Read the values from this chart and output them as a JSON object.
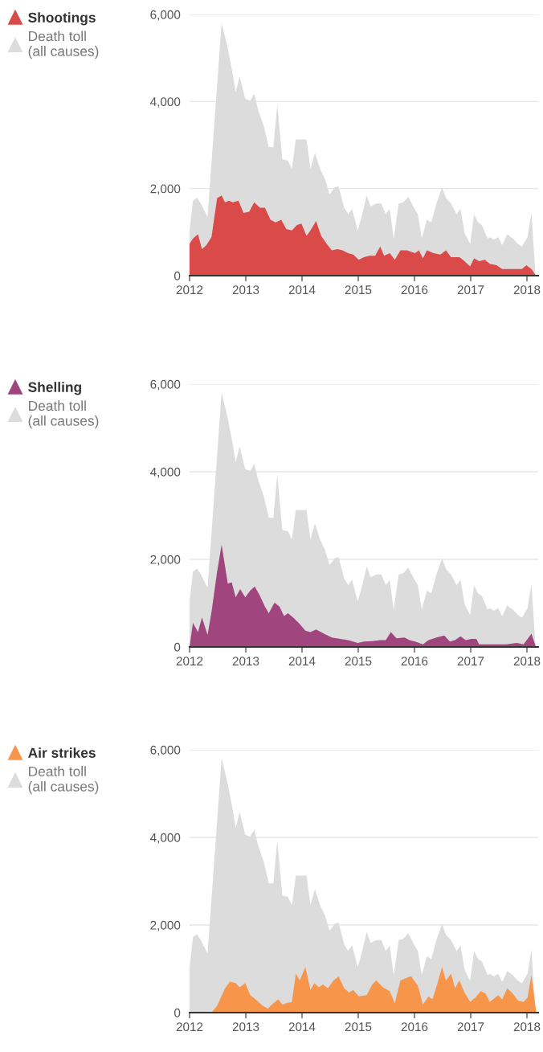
{
  "chart_data": [
    {
      "type": "area",
      "xlim": [
        2012,
        2018.2
      ],
      "xticks": [
        2012,
        2013,
        2014,
        2015,
        2016,
        2017,
        2018
      ],
      "ylim": [
        0,
        6000
      ],
      "yticks": [
        0,
        {
          "value": 2000,
          "label": "2,000"
        },
        {
          "value": 4000,
          "label": "4,000"
        },
        {
          "value": 6000,
          "label": "6,000"
        }
      ],
      "grid": "y",
      "legend": "top left",
      "series": [
        {
          "name": "Shootings",
          "color": "#d94a48",
          "x": [
            2012.0,
            2012.06,
            2012.15,
            2012.22,
            2012.3,
            2012.39,
            2012.49,
            2012.57,
            2012.63,
            2012.7,
            2012.77,
            2012.87,
            2012.96,
            2013.06,
            2013.15,
            2013.25,
            2013.34,
            2013.44,
            2013.53,
            2013.63,
            2013.72,
            2013.82,
            2013.91,
            2013.99,
            2014.08,
            2014.15,
            2014.25,
            2014.34,
            2014.44,
            2014.53,
            2014.63,
            2014.72,
            2014.82,
            2014.91,
            2015.01,
            2015.1,
            2015.2,
            2015.3,
            2015.39,
            2015.46,
            2015.56,
            2015.65,
            2015.75,
            2015.87,
            2016.01,
            2016.08,
            2016.15,
            2016.22,
            2016.34,
            2016.46,
            2016.56,
            2016.65,
            2016.8,
            2016.89,
            2016.99,
            2017.06,
            2017.15,
            2017.25,
            2017.34,
            2017.46,
            2017.56,
            2017.68,
            2017.82,
            2017.91,
            2017.99,
            2018.08,
            2018.16
          ],
          "values": [
            730,
            855,
            950,
            610,
            700,
            885,
            1780,
            1840,
            1685,
            1720,
            1685,
            1720,
            1440,
            1470,
            1685,
            1560,
            1560,
            1285,
            1225,
            1285,
            1070,
            1040,
            1165,
            1195,
            915,
            1040,
            1255,
            915,
            730,
            580,
            610,
            580,
            515,
            485,
            365,
            425,
            455,
            455,
            670,
            455,
            515,
            365,
            580,
            580,
            515,
            580,
            395,
            580,
            515,
            485,
            580,
            425,
            425,
            330,
            210,
            395,
            330,
            365,
            270,
            240,
            150,
            150,
            150,
            150,
            240,
            150,
            0
          ]
        },
        {
          "name": "Death toll\n(all causes)",
          "color": "#dcdcdc",
          "x": [
            2012.0,
            2012.06,
            2012.13,
            2012.2,
            2012.32,
            2012.57,
            2012.68,
            2012.77,
            2012.82,
            2012.89,
            2012.99,
            2013.08,
            2013.15,
            2013.22,
            2013.32,
            2013.41,
            2013.49,
            2013.56,
            2013.65,
            2013.75,
            2013.82,
            2013.89,
            2014.08,
            2014.15,
            2014.23,
            2014.32,
            2014.41,
            2014.49,
            2014.58,
            2014.65,
            2014.75,
            2014.82,
            2014.89,
            2014.99,
            2015.06,
            2015.15,
            2015.22,
            2015.32,
            2015.41,
            2015.49,
            2015.56,
            2015.63,
            2015.72,
            2015.8,
            2015.89,
            2015.99,
            2016.06,
            2016.13,
            2016.22,
            2016.3,
            2016.39,
            2016.49,
            2016.56,
            2016.65,
            2016.75,
            2016.82,
            2016.89,
            2016.99,
            2017.06,
            2017.13,
            2017.2,
            2017.3,
            2017.34,
            2017.41,
            2017.49,
            2017.56,
            2017.65,
            2017.75,
            2017.84,
            2017.91,
            2018.01,
            2018.08,
            2018.15
          ],
          "values": [
            1040,
            1720,
            1790,
            1655,
            1350,
            5810,
            5220,
            4610,
            4210,
            4580,
            4060,
            4020,
            4180,
            3810,
            3440,
            2950,
            2950,
            3930,
            2670,
            2640,
            2455,
            3130,
            3130,
            2455,
            2825,
            2455,
            2210,
            1870,
            2025,
            2055,
            1560,
            1410,
            1530,
            1040,
            1350,
            1840,
            1590,
            1655,
            1655,
            1410,
            1530,
            855,
            1655,
            1685,
            1810,
            1560,
            1410,
            855,
            1285,
            1225,
            1655,
            2025,
            1780,
            1655,
            1410,
            1530,
            980,
            730,
            1410,
            1225,
            1165,
            855,
            885,
            825,
            885,
            700,
            950,
            855,
            730,
            670,
            885,
            1440,
            55
          ]
        }
      ]
    },
    {
      "type": "area",
      "xlim": [
        2012,
        2018.2
      ],
      "xticks": [
        2012,
        2013,
        2014,
        2015,
        2016,
        2017,
        2018
      ],
      "ylim": [
        0,
        6000
      ],
      "yticks": [
        0,
        {
          "value": 2000,
          "label": "2,000"
        },
        {
          "value": 4000,
          "label": "4,000"
        },
        {
          "value": 6000,
          "label": "6,000"
        }
      ],
      "grid": "y",
      "legend": "top left",
      "series": [
        {
          "name": "Shelling",
          "color": "#a0457e",
          "x": [
            2012.0,
            2012.06,
            2012.15,
            2012.22,
            2012.32,
            2012.39,
            2012.49,
            2012.57,
            2012.68,
            2012.75,
            2012.82,
            2012.9,
            2012.99,
            2013.08,
            2013.16,
            2013.25,
            2013.34,
            2013.41,
            2013.51,
            2013.6,
            2013.68,
            2013.75,
            2013.84,
            2013.94,
            2014.06,
            2014.15,
            2014.25,
            2014.39,
            2014.53,
            2014.68,
            2014.82,
            2014.99,
            2015.1,
            2015.25,
            2015.39,
            2015.49,
            2015.58,
            2015.68,
            2015.82,
            2015.91,
            2016.01,
            2016.15,
            2016.25,
            2016.39,
            2016.53,
            2016.63,
            2016.72,
            2016.82,
            2016.91,
            2017.01,
            2017.1,
            2017.15,
            2017.39,
            2017.63,
            2017.82,
            2017.94,
            2018.08,
            2018.16
          ],
          "values": [
            0,
            550,
            340,
            675,
            275,
            800,
            1720,
            2335,
            1445,
            1475,
            1135,
            1320,
            1135,
            1290,
            1380,
            1170,
            920,
            770,
            1015,
            920,
            705,
            770,
            675,
            550,
            370,
            340,
            400,
            305,
            215,
            185,
            155,
            90,
            125,
            135,
            155,
            155,
            340,
            195,
            215,
            155,
            125,
            60,
            155,
            215,
            260,
            125,
            155,
            245,
            155,
            185,
            185,
            60,
            60,
            60,
            90,
            60,
            305,
            0
          ]
        },
        {
          "name": "Death toll\n(all causes)",
          "color": "#dcdcdc",
          "x": [
            2012.0,
            2012.06,
            2012.13,
            2012.2,
            2012.32,
            2012.57,
            2012.68,
            2012.77,
            2012.82,
            2012.89,
            2012.99,
            2013.08,
            2013.15,
            2013.22,
            2013.32,
            2013.41,
            2013.49,
            2013.56,
            2013.65,
            2013.75,
            2013.82,
            2013.89,
            2014.08,
            2014.15,
            2014.23,
            2014.32,
            2014.41,
            2014.49,
            2014.58,
            2014.65,
            2014.75,
            2014.82,
            2014.89,
            2014.99,
            2015.06,
            2015.15,
            2015.22,
            2015.32,
            2015.41,
            2015.49,
            2015.56,
            2015.63,
            2015.72,
            2015.8,
            2015.89,
            2015.99,
            2016.06,
            2016.13,
            2016.22,
            2016.3,
            2016.39,
            2016.49,
            2016.56,
            2016.65,
            2016.75,
            2016.82,
            2016.89,
            2016.99,
            2017.06,
            2017.13,
            2017.2,
            2017.3,
            2017.34,
            2017.41,
            2017.49,
            2017.56,
            2017.65,
            2017.75,
            2017.84,
            2017.91,
            2018.01,
            2018.08,
            2018.15
          ],
          "values": [
            1040,
            1720,
            1790,
            1655,
            1350,
            5810,
            5220,
            4610,
            4210,
            4580,
            4060,
            4020,
            4180,
            3810,
            3440,
            2950,
            2950,
            3930,
            2670,
            2640,
            2455,
            3130,
            3130,
            2455,
            2825,
            2455,
            2210,
            1870,
            2025,
            2055,
            1560,
            1410,
            1530,
            1040,
            1350,
            1840,
            1590,
            1655,
            1655,
            1410,
            1530,
            855,
            1655,
            1685,
            1810,
            1560,
            1410,
            855,
            1285,
            1225,
            1655,
            2025,
            1780,
            1655,
            1410,
            1530,
            980,
            730,
            1410,
            1225,
            1165,
            855,
            885,
            825,
            885,
            700,
            950,
            855,
            730,
            670,
            885,
            1440,
            55
          ]
        }
      ]
    },
    {
      "type": "area",
      "xlim": [
        2012,
        2018.2
      ],
      "xticks": [
        2012,
        2013,
        2014,
        2015,
        2016,
        2017,
        2018
      ],
      "ylim": [
        0,
        6000
      ],
      "yticks": [
        0,
        {
          "value": 2000,
          "label": "2,000"
        },
        {
          "value": 4000,
          "label": "4,000"
        },
        {
          "value": 6000,
          "label": "6,000"
        }
      ],
      "grid": "y",
      "legend": "top left",
      "series": [
        {
          "name": "Air strikes",
          "color": "#f7954a",
          "x": [
            2012.0,
            2012.39,
            2012.49,
            2012.63,
            2012.72,
            2012.82,
            2012.89,
            2012.99,
            2013.08,
            2013.2,
            2013.3,
            2013.39,
            2013.49,
            2013.58,
            2013.65,
            2013.72,
            2013.82,
            2013.89,
            2013.96,
            2014.06,
            2014.15,
            2014.22,
            2014.3,
            2014.37,
            2014.46,
            2014.56,
            2014.65,
            2014.75,
            2014.84,
            2014.91,
            2015.01,
            2015.15,
            2015.25,
            2015.32,
            2015.44,
            2015.56,
            2015.65,
            2015.75,
            2015.87,
            2015.94,
            2016.06,
            2016.15,
            2016.25,
            2016.32,
            2016.41,
            2016.49,
            2016.56,
            2016.65,
            2016.72,
            2016.8,
            2016.89,
            2016.99,
            2017.08,
            2017.18,
            2017.27,
            2017.34,
            2017.49,
            2017.56,
            2017.65,
            2017.75,
            2017.84,
            2017.94,
            2018.01,
            2018.08,
            2018.16
          ],
          "values": [
            0,
            0,
            155,
            555,
            705,
            675,
            580,
            675,
            400,
            275,
            155,
            90,
            215,
            305,
            185,
            215,
            245,
            890,
            735,
            1040,
            520,
            675,
            580,
            640,
            555,
            735,
            825,
            555,
            460,
            520,
            370,
            400,
            640,
            735,
            580,
            490,
            215,
            735,
            800,
            830,
            615,
            185,
            370,
            305,
            675,
            1040,
            735,
            890,
            555,
            735,
            460,
            245,
            340,
            490,
            430,
            245,
            400,
            305,
            555,
            430,
            275,
            245,
            340,
            860,
            60
          ]
        },
        {
          "name": "Death toll\n(all causes)",
          "color": "#dcdcdc",
          "x": [
            2012.0,
            2012.06,
            2012.13,
            2012.2,
            2012.32,
            2012.57,
            2012.68,
            2012.77,
            2012.82,
            2012.89,
            2012.99,
            2013.08,
            2013.15,
            2013.22,
            2013.32,
            2013.41,
            2013.49,
            2013.56,
            2013.65,
            2013.75,
            2013.82,
            2013.89,
            2014.08,
            2014.15,
            2014.23,
            2014.32,
            2014.41,
            2014.49,
            2014.58,
            2014.65,
            2014.75,
            2014.82,
            2014.89,
            2014.99,
            2015.06,
            2015.15,
            2015.22,
            2015.32,
            2015.41,
            2015.49,
            2015.56,
            2015.63,
            2015.72,
            2015.8,
            2015.89,
            2015.99,
            2016.06,
            2016.13,
            2016.22,
            2016.3,
            2016.39,
            2016.49,
            2016.56,
            2016.65,
            2016.75,
            2016.82,
            2016.89,
            2016.99,
            2017.06,
            2017.13,
            2017.2,
            2017.3,
            2017.34,
            2017.41,
            2017.49,
            2017.56,
            2017.65,
            2017.75,
            2017.84,
            2017.91,
            2018.01,
            2018.08,
            2018.15
          ],
          "values": [
            1040,
            1720,
            1790,
            1655,
            1350,
            5810,
            5220,
            4610,
            4210,
            4580,
            4060,
            4020,
            4180,
            3810,
            3440,
            2950,
            2950,
            3930,
            2670,
            2640,
            2455,
            3130,
            3130,
            2455,
            2825,
            2455,
            2210,
            1870,
            2025,
            2055,
            1560,
            1410,
            1530,
            1040,
            1350,
            1840,
            1590,
            1655,
            1655,
            1410,
            1530,
            855,
            1655,
            1685,
            1810,
            1560,
            1410,
            855,
            1285,
            1225,
            1655,
            2025,
            1780,
            1655,
            1410,
            1530,
            980,
            730,
            1410,
            1225,
            1165,
            855,
            885,
            825,
            885,
            700,
            950,
            855,
            730,
            670,
            885,
            1440,
            55
          ]
        }
      ]
    }
  ]
}
